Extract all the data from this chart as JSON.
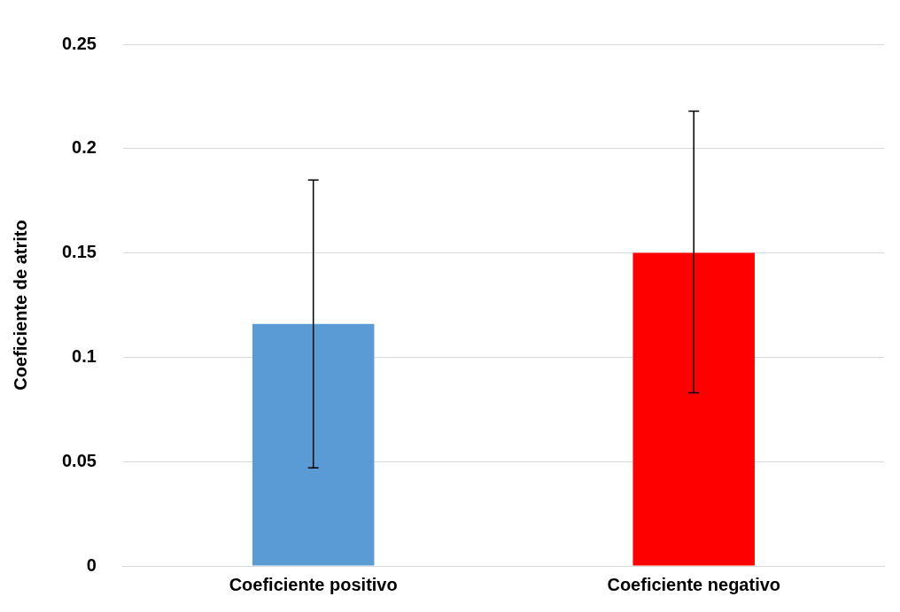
{
  "chart_data": {
    "type": "bar",
    "ylabel": "Coeficiente de atrito",
    "categories": [
      "Coeficiente positivo",
      "Coeficiente negativo"
    ],
    "values": [
      0.116,
      0.15
    ],
    "colors": [
      "#5b9bd5",
      "#ff0000"
    ],
    "errors": [
      [
        0.047,
        0.185
      ],
      [
        0.083,
        0.218
      ]
    ],
    "ylim": [
      0,
      0.25
    ],
    "yticks": [
      0,
      0.05,
      0.1,
      0.15,
      0.2,
      0.25
    ],
    "grid": "y",
    "legend": false
  }
}
